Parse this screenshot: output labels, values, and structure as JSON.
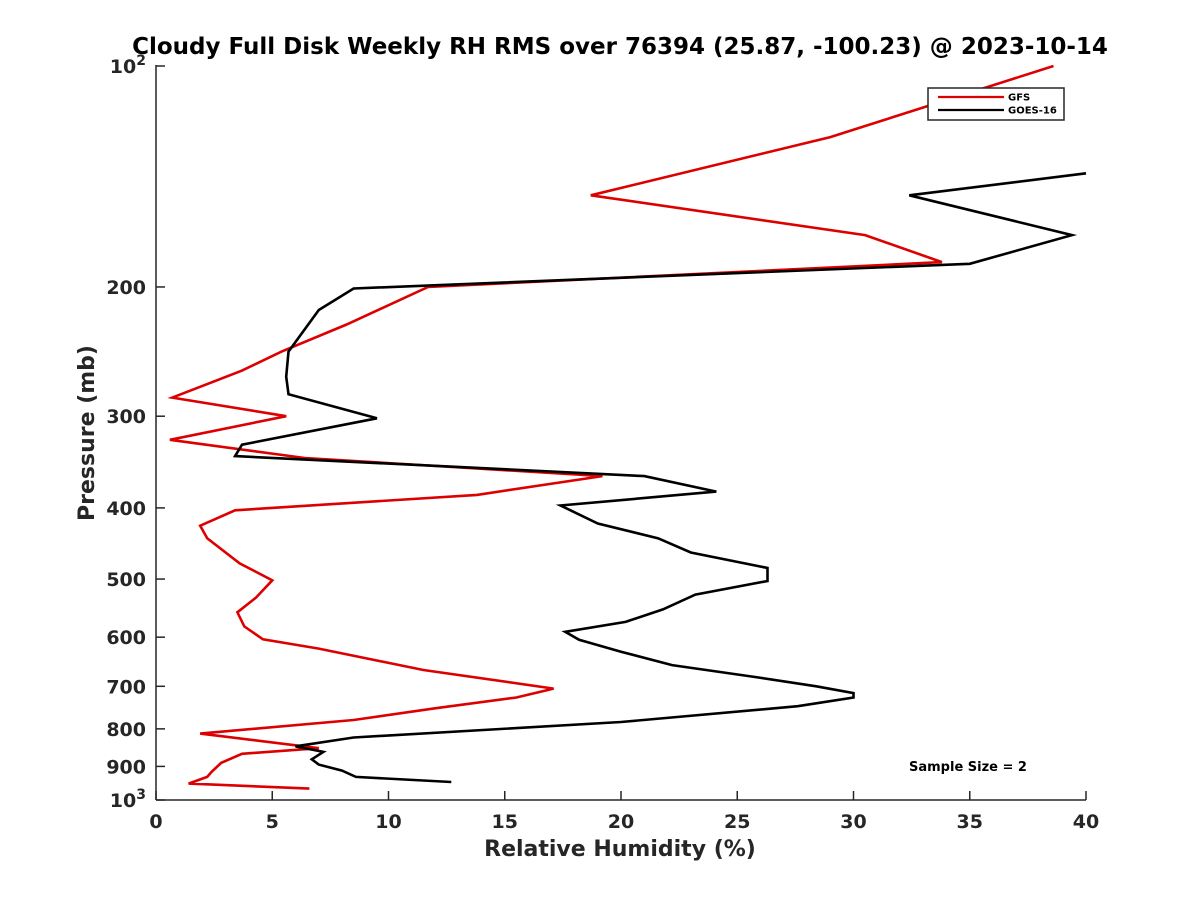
{
  "chart_data": {
    "type": "line",
    "title": "Cloudy Full Disk Weekly RH RMS over 76394 (25.87, -100.23) @ 2023-10-14",
    "xlabel": "Relative Humidity (%)",
    "ylabel": "Pressure (mb)",
    "xlim": [
      0,
      40
    ],
    "ylim": [
      100,
      1000
    ],
    "yscale": "log",
    "y_reversed": true,
    "xticks": [
      0,
      5,
      10,
      15,
      20,
      25,
      30,
      35,
      40
    ],
    "xtick_labels": [
      "0",
      "5",
      "10",
      "15",
      "20",
      "25",
      "30",
      "35",
      "40"
    ],
    "yticks": [
      100,
      200,
      300,
      400,
      500,
      600,
      700,
      800,
      900,
      1000
    ],
    "ytick_labels": [
      {
        "text": "10",
        "sup": "2"
      },
      {
        "text": "200",
        "sup": ""
      },
      {
        "text": "300",
        "sup": ""
      },
      {
        "text": "400",
        "sup": ""
      },
      {
        "text": "500",
        "sup": ""
      },
      {
        "text": "600",
        "sup": ""
      },
      {
        "text": "700",
        "sup": ""
      },
      {
        "text": "800",
        "sup": ""
      },
      {
        "text": "900",
        "sup": ""
      },
      {
        "text": "10",
        "sup": "3"
      }
    ],
    "grid": false,
    "legend_position": "top-right",
    "annotation": "Sample Size = 2",
    "series": [
      {
        "name": "GFS",
        "color": "#dd0000",
        "points": [
          [
            38.6,
            100
          ],
          [
            29.0,
            125
          ],
          [
            18.7,
            150
          ],
          [
            30.5,
            170
          ],
          [
            33.8,
            185
          ],
          [
            11.7,
            200
          ],
          [
            8.2,
            225
          ],
          [
            5.4,
            245
          ],
          [
            3.7,
            260
          ],
          [
            0.7,
            283
          ],
          [
            5.6,
            300
          ],
          [
            0.6,
            323
          ],
          [
            6.4,
            342
          ],
          [
            19.2,
            362
          ],
          [
            13.8,
            384
          ],
          [
            3.4,
            403
          ],
          [
            1.9,
            423
          ],
          [
            2.2,
            440
          ],
          [
            3.6,
            476
          ],
          [
            5.0,
            502
          ],
          [
            4.3,
            530
          ],
          [
            3.5,
            555
          ],
          [
            3.8,
            580
          ],
          [
            4.6,
            604
          ],
          [
            7.0,
            622
          ],
          [
            11.5,
            665
          ],
          [
            17.1,
            705
          ],
          [
            15.5,
            725
          ],
          [
            12.0,
            750
          ],
          [
            8.5,
            778
          ],
          [
            1.9,
            812
          ],
          [
            7.0,
            850
          ],
          [
            3.7,
            865
          ],
          [
            2.8,
            890
          ],
          [
            2.4,
            915
          ],
          [
            2.2,
            930
          ],
          [
            1.4,
            950
          ],
          [
            6.6,
            965
          ]
        ]
      },
      {
        "name": "GOES-16",
        "color": "#000000",
        "points": [
          [
            40.0,
            140
          ],
          [
            32.4,
            150
          ],
          [
            39.4,
            170
          ],
          [
            35.0,
            186
          ],
          [
            8.5,
            201
          ],
          [
            7.0,
            215
          ],
          [
            5.7,
            245
          ],
          [
            5.6,
            265
          ],
          [
            5.7,
            280
          ],
          [
            9.5,
            302
          ],
          [
            3.7,
            328
          ],
          [
            3.4,
            340
          ],
          [
            21.0,
            362
          ],
          [
            24.1,
            380
          ],
          [
            17.4,
            397
          ],
          [
            19.0,
            420
          ],
          [
            21.6,
            440
          ],
          [
            23.0,
            460
          ],
          [
            26.3,
            483
          ],
          [
            26.3,
            503
          ],
          [
            23.2,
            525
          ],
          [
            21.8,
            550
          ],
          [
            20.2,
            572
          ],
          [
            17.6,
            590
          ],
          [
            18.2,
            605
          ],
          [
            20.0,
            628
          ],
          [
            22.2,
            655
          ],
          [
            25.8,
            680
          ],
          [
            28.4,
            700
          ],
          [
            30.0,
            715
          ],
          [
            30.0,
            725
          ],
          [
            27.6,
            745
          ],
          [
            20.0,
            783
          ],
          [
            8.5,
            822
          ],
          [
            6.0,
            845
          ],
          [
            7.2,
            860
          ],
          [
            6.7,
            880
          ],
          [
            7.0,
            895
          ],
          [
            8.0,
            912
          ],
          [
            8.6,
            930
          ],
          [
            12.7,
            945
          ]
        ]
      }
    ]
  }
}
